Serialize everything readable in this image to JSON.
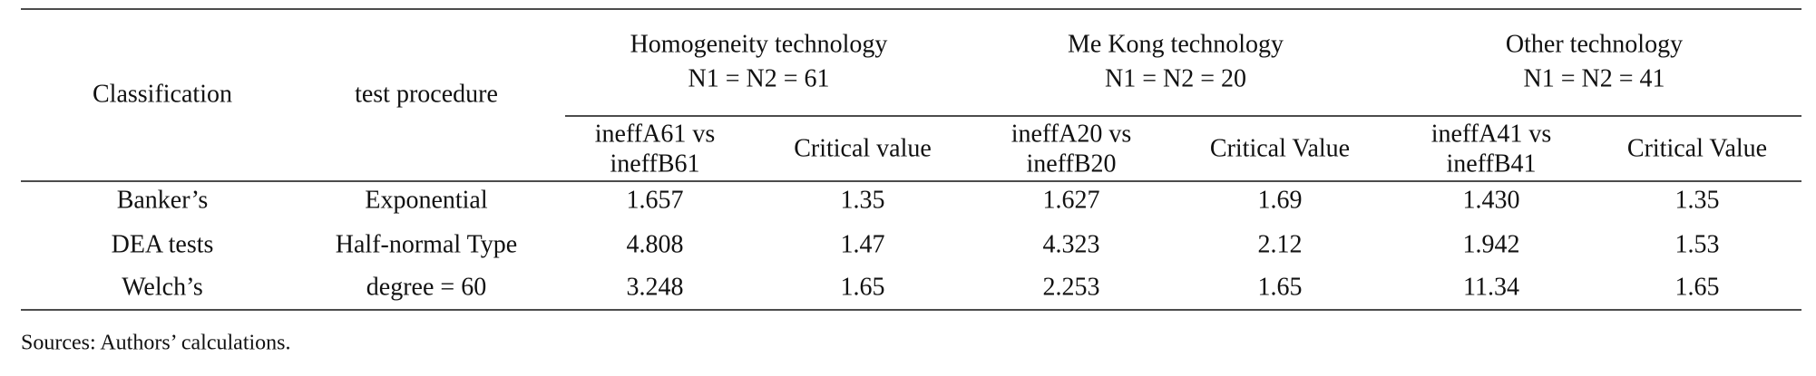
{
  "table": {
    "header": {
      "classification": "Classification",
      "procedure": "test procedure",
      "groups": [
        {
          "title": "Homogeneity technology",
          "sample": "N1 = N2 = 61",
          "columns": [
            [
              "ineffA61 vs",
              "ineffB61"
            ],
            [
              "Critical value"
            ]
          ]
        },
        {
          "title": "Me Kong technology",
          "sample": "N1 = N2 = 20",
          "columns": [
            [
              "ineffA20 vs",
              "ineffB20"
            ],
            [
              "Critical Value"
            ]
          ]
        },
        {
          "title": "Other technology",
          "sample": "N1 = N2 = 41",
          "columns": [
            [
              "ineffA41 vs",
              "ineffB41"
            ],
            [
              "Critical Value"
            ]
          ]
        }
      ]
    },
    "rows": [
      [
        "Banker’s",
        "Exponential",
        "1.657",
        "1.35",
        "1.627",
        "1.69",
        "1.430",
        "1.35"
      ],
      [
        "DEA tests",
        "Half-normal Type",
        "4.808",
        "1.47",
        "4.323",
        "2.12",
        "1.942",
        "1.53"
      ],
      [
        "Welch’s",
        "degree = 60",
        "3.248",
        "1.65",
        "2.253",
        "1.65",
        "11.34",
        "1.65"
      ]
    ],
    "source": "Sources: Authors’ calculations."
  }
}
